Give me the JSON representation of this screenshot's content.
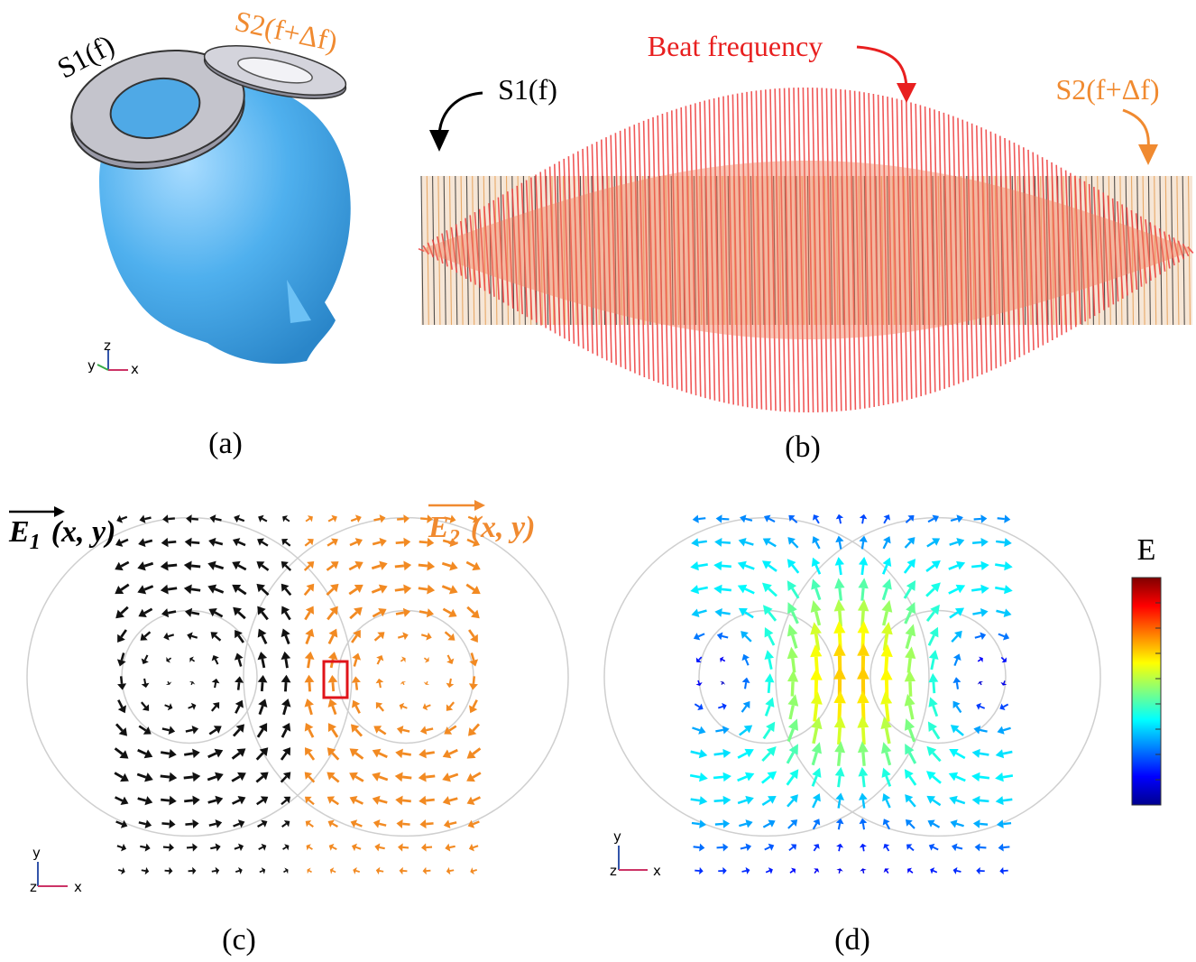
{
  "panel_a": {
    "label": "(a)",
    "source_1": "S1(f)",
    "source_2": "S2(f+Δf)",
    "axes": {
      "y": "y",
      "z": "z",
      "x": "x"
    }
  },
  "panel_b": {
    "label": "(b)",
    "beat": "Beat frequency",
    "source_1": "S1(f)",
    "source_2": "S2(f+Δf)"
  },
  "panel_c": {
    "label": "(c)",
    "field_1": {
      "symbol": "E",
      "subscript": "1",
      "args": "(x, y)"
    },
    "field_2": {
      "symbol": "E",
      "subscript": "2",
      "args": "(x, y)"
    },
    "axes": {
      "y": "y",
      "z": "z",
      "x": "x"
    }
  },
  "panel_d": {
    "label": "(d)",
    "colorbar_title": "E",
    "axes": {
      "y": "y",
      "z": "z",
      "x": "x"
    }
  }
}
